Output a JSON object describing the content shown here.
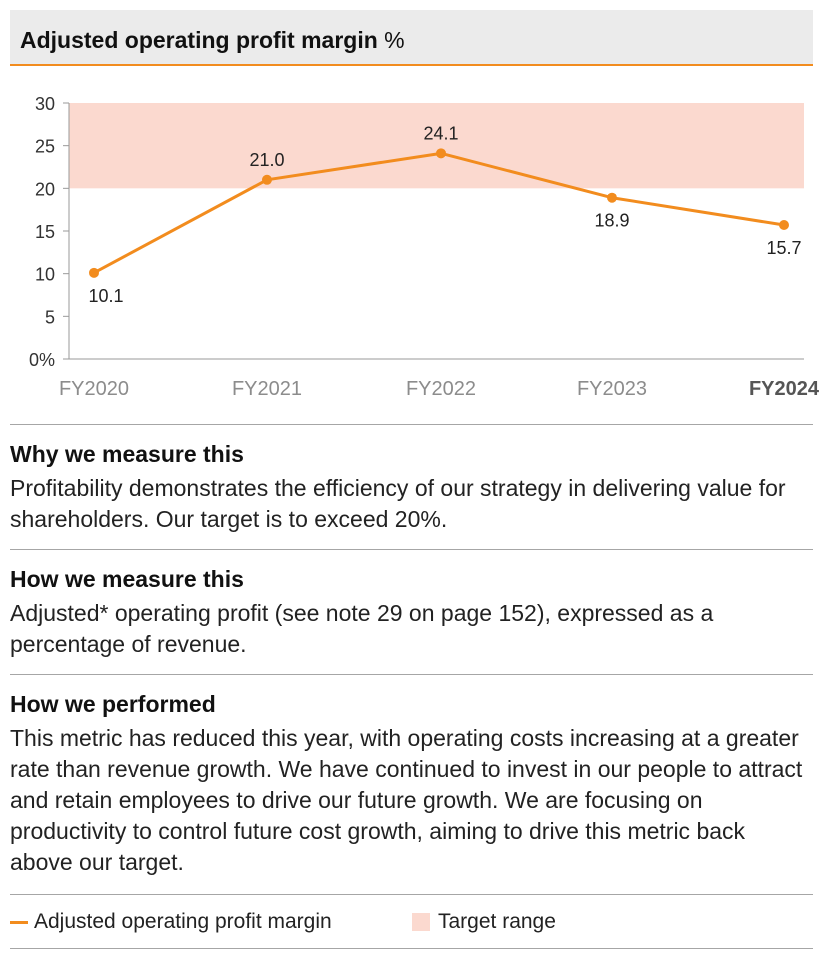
{
  "header": {
    "title_bold": "Adjusted operating profit margin",
    "title_unit": "%"
  },
  "chart_data": {
    "type": "line",
    "title": "Adjusted operating profit margin %",
    "categories": [
      "FY2020",
      "FY2021",
      "FY2022",
      "FY2023",
      "FY2024"
    ],
    "highlight_category": "FY2024",
    "series": [
      {
        "name": "Adjusted operating profit margin",
        "values": [
          10.1,
          21.0,
          24.1,
          18.9,
          15.7
        ],
        "color": "#f28c1e"
      }
    ],
    "value_labels": [
      "10.1",
      "21.0",
      "24.1",
      "18.9",
      "15.7"
    ],
    "target_range": {
      "name": "Target range",
      "from": 20,
      "to": 30,
      "color": "#fbd9cf"
    },
    "ylim": [
      0,
      30
    ],
    "yticks": [
      0,
      5,
      10,
      15,
      20,
      25,
      30
    ],
    "ytick_labels": [
      "0%",
      "5",
      "10",
      "15",
      "20",
      "25",
      "30"
    ],
    "xlabel": "",
    "ylabel": ""
  },
  "sections": [
    {
      "title": "Why we measure this",
      "body": "Profitability demonstrates the efficiency of our strategy in delivering value for shareholders. Our target is to exceed 20%."
    },
    {
      "title": "How we measure this",
      "body": "Adjusted* operating profit (see note 29 on page 152), expressed as a percentage of revenue."
    },
    {
      "title": "How we performed",
      "body": "This metric has reduced this year, with operating costs increasing at a greater rate than revenue growth. We have continued to invest in our people to attract and retain employees to drive our future growth. We are focusing on productivity to control future cost growth, aiming to drive this metric back above our target."
    }
  ],
  "legend": {
    "series_label": "Adjusted operating profit margin",
    "target_label": "Target range"
  }
}
